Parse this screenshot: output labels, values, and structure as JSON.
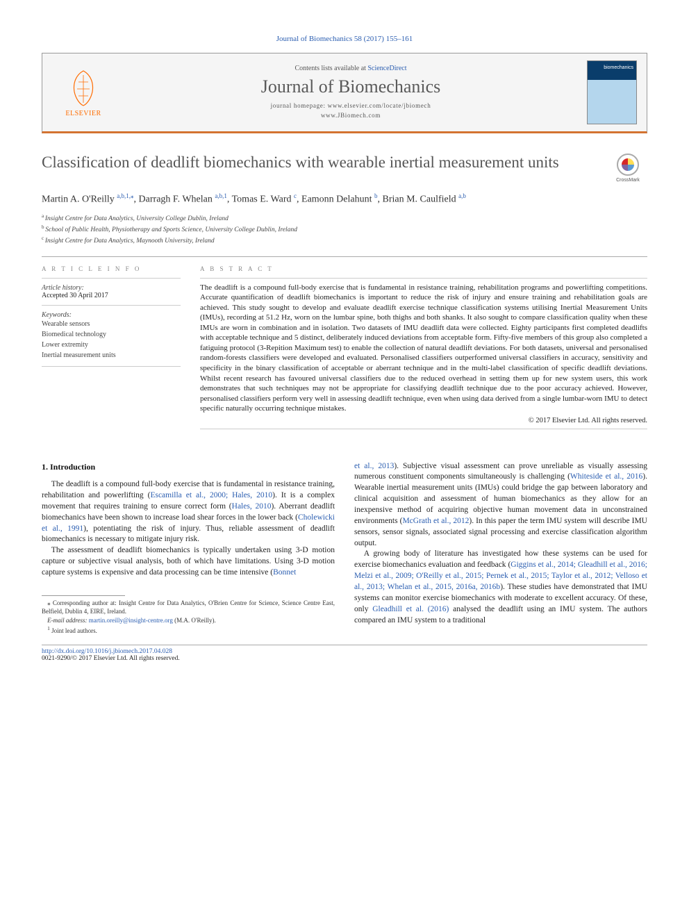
{
  "topline": "Journal of Biomechanics 58 (2017) 155–161",
  "header": {
    "publisher": "ELSEVIER",
    "contents_prefix": "Contents lists available at ",
    "contents_link": "ScienceDirect",
    "journal_name": "Journal of Biomechanics",
    "homepage_label": "journal homepage: ",
    "homepage1": "www.elsevier.com/locate/jbiomech",
    "homepage2": "www.JBiomech.com",
    "cover_label": "biomechanics"
  },
  "article": {
    "title": "Classification of deadlift biomechanics with wearable inertial measurement units",
    "crossmark": "CrossMark"
  },
  "authors_html_parts": [
    {
      "name": "Martin A. O'Reilly",
      "sup": "a,b,1,",
      "star": true,
      "comma": ", "
    },
    {
      "name": "Darragh F. Whelan",
      "sup": "a,b,1",
      "comma": ", "
    },
    {
      "name": "Tomas E. Ward",
      "sup": "c",
      "comma": ", "
    },
    {
      "name": "Eamonn Delahunt",
      "sup": "b",
      "comma": ", "
    },
    {
      "name": "Brian M. Caulfield",
      "sup": "a,b",
      "comma": ""
    }
  ],
  "affiliations": [
    {
      "sup": "a",
      "text": "Insight Centre for Data Analytics, University College Dublin, Ireland"
    },
    {
      "sup": "b",
      "text": "School of Public Health, Physiotherapy and Sports Science, University College Dublin, Ireland"
    },
    {
      "sup": "c",
      "text": "Insight Centre for Data Analytics, Maynooth University, Ireland"
    }
  ],
  "info": {
    "heading": "A R T I C L E   I N F O",
    "history_label": "Article history:",
    "accepted": "Accepted 30 April 2017",
    "keywords_label": "Keywords:",
    "keywords": [
      "Wearable sensors",
      "Biomedical technology",
      "Lower extremity",
      "Inertial measurement units"
    ]
  },
  "abstract": {
    "heading": "A B S T R A C T",
    "text": "The deadlift is a compound full-body exercise that is fundamental in resistance training, rehabilitation programs and powerlifting competitions. Accurate quantification of deadlift biomechanics is important to reduce the risk of injury and ensure training and rehabilitation goals are achieved. This study sought to develop and evaluate deadlift exercise technique classification systems utilising Inertial Measurement Units (IMUs), recording at 51.2 Hz, worn on the lumbar spine, both thighs and both shanks. It also sought to compare classification quality when these IMUs are worn in combination and in isolation. Two datasets of IMU deadlift data were collected. Eighty participants first completed deadlifts with acceptable technique and 5 distinct, deliberately induced deviations from acceptable form. Fifty-five members of this group also completed a fatiguing protocol (3-Repition Maximum test) to enable the collection of natural deadlift deviations. For both datasets, universal and personalised random-forests classifiers were developed and evaluated. Personalised classifiers outperformed universal classifiers in accuracy, sensitivity and specificity in the binary classification of acceptable or aberrant technique and in the multi-label classification of specific deadlift deviations. Whilst recent research has favoured universal classifiers due to the reduced overhead in setting them up for new system users, this work demonstrates that such techniques may not be appropriate for classifying deadlift technique due to the poor accuracy achieved. However, personalised classifiers perform very well in assessing deadlift technique, even when using data derived from a single lumbar-worn IMU to detect specific naturally occurring technique mistakes.",
    "copyright": "© 2017 Elsevier Ltd. All rights reserved."
  },
  "body": {
    "section_heading": "1. Introduction",
    "p1_a": "The deadlift is a compound full-body exercise that is fundamental in resistance training, rehabilitation and powerlifting (",
    "p1_ref1": "Escamilla et al., 2000; Hales, 2010",
    "p1_b": "). It is a complex movement that requires training to ensure correct form (",
    "p1_ref2": "Hales, 2010",
    "p1_c": "). Aberrant deadlift biomechanics have been shown to increase load shear forces in the lower back (",
    "p1_ref3": "Cholewicki et al., 1991",
    "p1_d": "), potentiating the risk of injury. Thus, reliable assessment of deadlift biomechanics is necessary to mitigate injury risk.",
    "p2_a": "The assessment of deadlift biomechanics is typically undertaken using 3-D motion capture or subjective visual analysis, both of which have limitations. Using 3-D motion capture systems is expensive and data processing can be time intensive (",
    "p2_ref1": "Bonnet",
    "p3_ref1": "et al., 2013",
    "p3_a": "). Subjective visual assessment can prove unreliable as visually assessing numerous constituent components simultaneously is challenging (",
    "p3_ref2": "Whiteside et al., 2016",
    "p3_b": "). Wearable inertial measurement units (IMUs) could bridge the gap between laboratory and clinical acquisition and assessment of human biomechanics as they allow for an inexpensive method of acquiring objective human movement data in unconstrained environments (",
    "p3_ref3": "McGrath et al., 2012",
    "p3_c": "). In this paper the term IMU system will describe IMU sensors, sensor signals, associated signal processing and exercise classification algorithm output.",
    "p4_a": "A growing body of literature has investigated how these systems can be used for exercise biomechanics evaluation and feedback (",
    "p4_ref1": "Giggins et al., 2014; Gleadhill et al., 2016; Melzi et al., 2009; O'Reilly et al., 2015; Pernek et al., 2015; Taylor et al., 2012; Velloso et al., 2013; Whelan et al., 2015, 2016a, 2016b",
    "p4_b": "). These studies have demonstrated that IMU systems can monitor exercise biomechanics with moderate to excellent accuracy. Of these, only ",
    "p4_ref2": "Gleadhill et al. (2016)",
    "p4_c": " analysed the deadlift using an IMU system. The authors compared an IMU system to a traditional"
  },
  "footnotes": {
    "corr": "Corresponding author at: Insight Centre for Data Analytics, O'Brien Centre for Science, Science Centre East, Belfield, Dublin 4, EIRE, Ireland.",
    "email_label": "E-mail address:",
    "email": "martin.oreilly@insight-centre.org",
    "email_who": "(M.A. O'Reilly).",
    "joint": "Joint lead authors."
  },
  "footer": {
    "doi": "http://dx.doi.org/10.1016/j.jbiomech.2017.04.028",
    "issn_line": "0021-9290/© 2017 Elsevier Ltd. All rights reserved."
  },
  "colors": {
    "link": "#2a5db0",
    "accent_rule": "#d37331",
    "publisher": "#ff6c00",
    "text": "#1a1a1a",
    "muted": "#888888"
  }
}
